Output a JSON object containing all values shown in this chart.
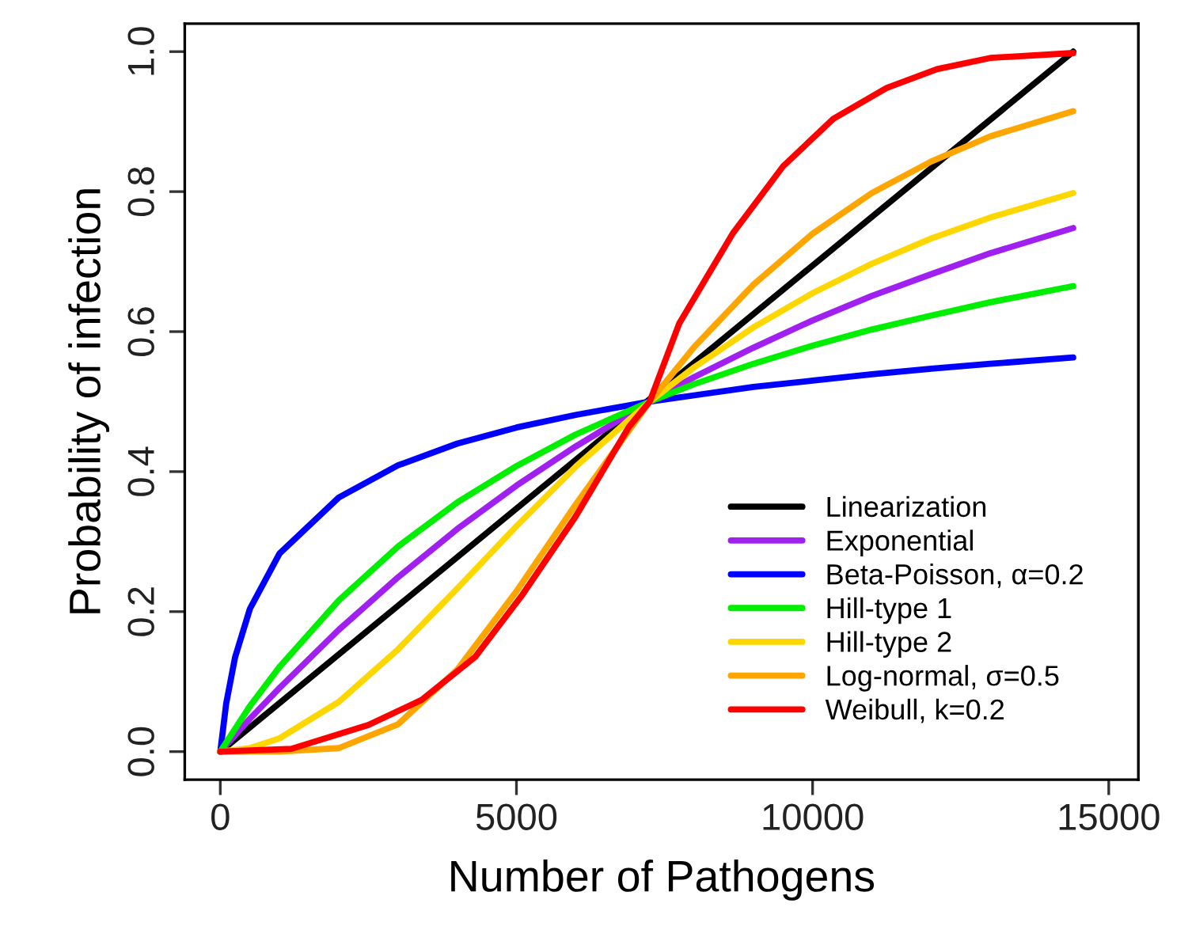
{
  "chart_data": {
    "type": "line",
    "xlabel": "Number of Pathogens",
    "ylabel": "Probability of infection",
    "xlim": [
      -600,
      15500
    ],
    "ylim": [
      -0.04,
      1.04
    ],
    "xticks": [
      0,
      5000,
      10000,
      15000
    ],
    "yticks": [
      {
        "value": 0,
        "label": "0.0"
      },
      0.2,
      0.4,
      0.6,
      0.8,
      {
        "value": 1,
        "label": "1.0"
      }
    ],
    "grid": false,
    "legend": "bottom right",
    "marker": "none",
    "line_style": "solid",
    "series": [
      {
        "name": "Linearization",
        "color": "#000000",
        "x": [
          0,
          14400
        ],
        "values": [
          0,
          1
        ]
      },
      {
        "name": "Exponential",
        "color": "#a020f0",
        "x": [
          0,
          500,
          1000,
          2000,
          3000,
          4000,
          5000,
          6000,
          7250,
          8000,
          9000,
          10000,
          11000,
          12000,
          13000,
          14400
        ],
        "values": [
          0,
          0.047,
          0.091,
          0.174,
          0.249,
          0.318,
          0.38,
          0.436,
          0.5,
          0.535,
          0.577,
          0.616,
          0.651,
          0.682,
          0.712,
          0.748
        ]
      },
      {
        "name": "Beta-Poisson, α=0.2",
        "color": "#0000ff",
        "x": [
          0,
          100,
          250,
          500,
          1000,
          2000,
          3000,
          4000,
          5000,
          6000,
          7250,
          8000,
          9000,
          10000,
          11000,
          12000,
          13000,
          14400
        ],
        "values": [
          0,
          0.069,
          0.135,
          0.204,
          0.283,
          0.363,
          0.409,
          0.44,
          0.463,
          0.481,
          0.5,
          0.509,
          0.521,
          0.53,
          0.539,
          0.547,
          0.554,
          0.563
        ]
      },
      {
        "name": "Hill-type 1",
        "color": "#00ee00",
        "x": [
          0,
          500,
          1000,
          2000,
          3000,
          4000,
          5000,
          6000,
          7250,
          8000,
          9000,
          10000,
          11000,
          12000,
          13000,
          14400
        ],
        "values": [
          0,
          0.065,
          0.121,
          0.216,
          0.293,
          0.356,
          0.408,
          0.453,
          0.5,
          0.525,
          0.554,
          0.58,
          0.603,
          0.623,
          0.642,
          0.665
        ]
      },
      {
        "name": "Hill-type 2",
        "color": "#ffd700",
        "x": [
          0,
          500,
          1000,
          2000,
          3000,
          4000,
          5000,
          6000,
          7250,
          8000,
          9000,
          10000,
          11000,
          12000,
          13000,
          14400
        ],
        "values": [
          0,
          0.005,
          0.019,
          0.071,
          0.146,
          0.233,
          0.322,
          0.407,
          0.5,
          0.549,
          0.606,
          0.655,
          0.697,
          0.733,
          0.763,
          0.798
        ]
      },
      {
        "name": "Log-normal, σ=0.5",
        "color": "#ffa500",
        "x": [
          0,
          1000,
          2000,
          3000,
          4000,
          5000,
          6000,
          7250,
          8000,
          9000,
          10000,
          11000,
          12000,
          13000,
          14400
        ],
        "values": [
          0,
          0.0,
          0.005,
          0.039,
          0.117,
          0.229,
          0.353,
          0.5,
          0.578,
          0.667,
          0.74,
          0.798,
          0.843,
          0.879,
          0.915
        ]
      },
      {
        "name": "Weibull, k=0.2",
        "color": "#ff0000",
        "x": [
          0,
          1200,
          2500,
          3400,
          4300,
          5100,
          6000,
          6900,
          7250,
          7750,
          8650,
          9500,
          10350,
          11250,
          12100,
          13000,
          14400
        ],
        "values": [
          0,
          0.004,
          0.038,
          0.074,
          0.135,
          0.224,
          0.336,
          0.464,
          0.5,
          0.612,
          0.74,
          0.836,
          0.904,
          0.948,
          0.975,
          0.991,
          0.998
        ]
      }
    ]
  }
}
